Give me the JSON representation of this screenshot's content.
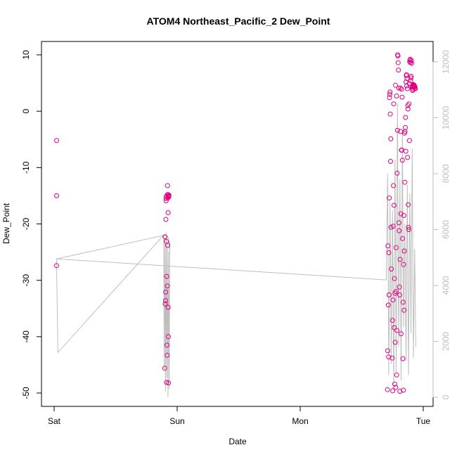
{
  "chart_data": {
    "type": "scatter",
    "title": "ATOM4 Northeast_Pacific_2 Dew_Point",
    "xlabel": "Date",
    "ylabel": "Dew_Point",
    "x_ticks": [
      "Sat",
      "Sun",
      "Mon",
      "Tue"
    ],
    "x_range_days": [
      -0.02,
      3.06
    ],
    "ylim": [
      -52.5,
      12
    ],
    "y_ticks": [
      -50,
      -40,
      -30,
      -20,
      -10,
      0,
      10
    ],
    "y2lim": [
      -300,
      12400
    ],
    "y2_ticks": [
      0,
      2000,
      4000,
      6000,
      8000,
      10000,
      12000
    ],
    "colors": {
      "points": "#e0007f",
      "line": "#bebebe",
      "right_axis": "#bebebe",
      "axes": "#000000"
    },
    "series": [
      {
        "kind": "points",
        "x": [
          0.02,
          0.02,
          0.02,
          0.899,
          0.901,
          0.903,
          0.905,
          0.906,
          0.908,
          0.909,
          0.91,
          0.911,
          0.912,
          0.913,
          0.915,
          0.917,
          0.919,
          0.92,
          0.921,
          0.922,
          0.923,
          0.924,
          0.925,
          0.926,
          0.927,
          0.928,
          0.929,
          0.93,
          0.931,
          0.932,
          0.933,
          2.709,
          2.711,
          2.713,
          2.716,
          2.718,
          2.72,
          2.722,
          2.724,
          2.726,
          2.728,
          2.73,
          2.732,
          2.734,
          2.736,
          2.738,
          2.74,
          2.748,
          2.75,
          2.752,
          2.754,
          2.756,
          2.758,
          2.76,
          2.762,
          2.764,
          2.766,
          2.768,
          2.77,
          2.772,
          2.774,
          2.776,
          2.778,
          2.78,
          2.782,
          2.784,
          2.786,
          2.788,
          2.79,
          2.792,
          2.794,
          2.796,
          2.798,
          2.8,
          2.802,
          2.804,
          2.806,
          2.808,
          2.81,
          2.812,
          2.814,
          2.816,
          2.818,
          2.82,
          2.822,
          2.824,
          2.826,
          2.828,
          2.83,
          2.832,
          2.834,
          2.836,
          2.838,
          2.84,
          2.842,
          2.844,
          2.846,
          2.848,
          2.85,
          2.852,
          2.854,
          2.856,
          2.858,
          2.86,
          2.862,
          2.864,
          2.866,
          2.868,
          2.87,
          2.872,
          2.874,
          2.876,
          2.878,
          2.88,
          2.882,
          2.884,
          2.886,
          2.888,
          2.89,
          2.892,
          2.894,
          2.896,
          2.898,
          2.9,
          2.902,
          2.904,
          2.906,
          2.908,
          2.91,
          2.912,
          2.914,
          2.916,
          2.918,
          2.92,
          2.922,
          2.924,
          2.926,
          2.928,
          2.93,
          2.932,
          2.934,
          2.936
        ],
        "y": [
          -5.2,
          -15.0,
          -27.4,
          -45.6,
          -22.3,
          -34.2,
          -33.6,
          -32.1,
          -19.2,
          -15.5,
          -15.9,
          -15.1,
          -23.1,
          -48.1,
          -29.3,
          -41.5,
          -43.3,
          -31.0,
          -14.8,
          -13.2,
          -23.8,
          -15.4,
          -14.8,
          -18.0,
          -34.8,
          -40.0,
          -48.2,
          -15.0,
          -15.1,
          -15.2,
          -14.9,
          -49.4,
          -42.5,
          -23.9,
          -34.4,
          -43.6,
          -25.1,
          -32.6,
          -15.4,
          2.4,
          3.0,
          3.4,
          -0.5,
          -8.9,
          -4.9,
          -20.6,
          -28.0,
          -43.8,
          -37.1,
          -49.6,
          -33.5,
          -20.4,
          -13.2,
          1.3,
          -16.7,
          -38.4,
          -29.7,
          -48.4,
          -32.3,
          -41.0,
          4.6,
          -49.0,
          -32.0,
          -24.2,
          2.7,
          -46.8,
          -38.9,
          -11.0,
          -3.4,
          10.0,
          9.8,
          8.6,
          7.3,
          4.1,
          -19.8,
          -21.2,
          -31.2,
          -32.6,
          -49.7,
          -26.3,
          4.1,
          -3.6,
          -18.2,
          -39.5,
          -6.9,
          3.9,
          -6.9,
          2.5,
          -8.7,
          -22.6,
          -43.9,
          -33.9,
          -49.5,
          -27.2,
          -18.5,
          -35.3,
          -24.8,
          -3.9,
          -12.6,
          -3.6,
          -2.9,
          -1.1,
          -7.1,
          5.2,
          6.3,
          6.5,
          4.5,
          5.8,
          4.0,
          -8.2,
          1.0,
          0.4,
          -16.6,
          -20.6,
          -21.0,
          1.3,
          4.9,
          -5.2,
          8.8,
          9.1,
          9.2,
          8.6,
          5.4,
          5.9,
          6.2,
          9.0,
          8.5,
          4.4,
          4.1,
          3.8,
          3.7,
          4.3,
          4.5,
          4.7,
          4.7,
          4.6,
          4.5,
          4.5,
          4.4,
          4.3,
          4.1,
          4.0
        ]
      },
      {
        "kind": "line",
        "axis": "right",
        "x": [
          0.02,
          0.02,
          0.03,
          0.89,
          0.895,
          0.9,
          0.905,
          0.91,
          0.915,
          0.92,
          0.925,
          0.93,
          0.935,
          0.94,
          0.94,
          0.93,
          0.9,
          0.02,
          0.02,
          2.7,
          2.71,
          2.72,
          2.73,
          2.74,
          2.75,
          2.76,
          2.77,
          2.78,
          2.79,
          2.8,
          2.81,
          2.82,
          2.83,
          2.84,
          2.85,
          2.86,
          2.87,
          2.88,
          2.89,
          2.9,
          2.91,
          2.92,
          2.93,
          2.94
        ],
        "y": [
          4950,
          4700,
          1600,
          5800,
          1000,
          5700,
          200,
          5900,
          700,
          5600,
          0,
          5200,
          300,
          5600,
          5100,
          5700,
          5800,
          4950,
          4950,
          4200,
          8000,
          800,
          7000,
          1200,
          6700,
          300,
          8500,
          900,
          10500,
          1800,
          7800,
          600,
          9500,
          2500,
          6200,
          1300,
          7600,
          800,
          7300,
          2300,
          8900,
          1400,
          5300,
          1800
        ]
      }
    ]
  }
}
